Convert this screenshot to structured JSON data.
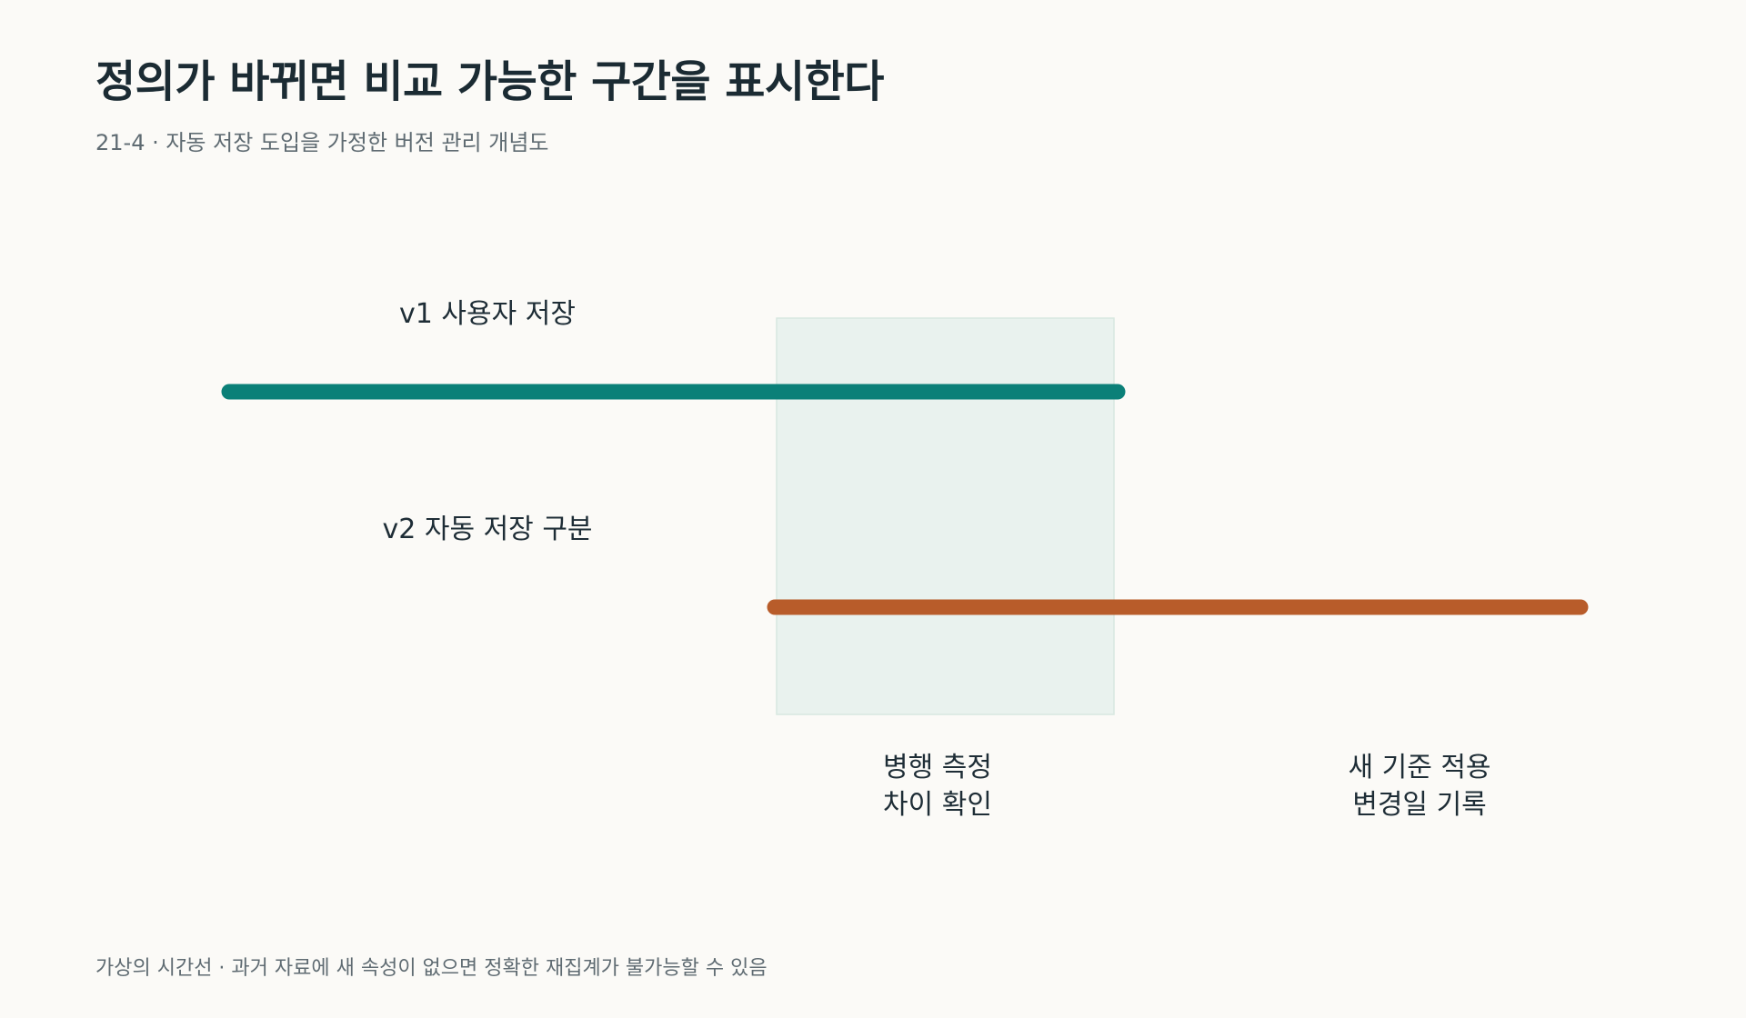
{
  "title": "정의가 바뀌면 비교 가능한 구간을 표시한다",
  "subtitle": "21-4 · 자동 저장 도입을 가정한 버전 관리 개념도",
  "tracks": [
    {
      "label": "v1 사용자 저장",
      "color": "#0b8078"
    },
    {
      "label": "v2 자동 저장 구분",
      "color": "#b85c2a"
    }
  ],
  "overlap_region": {
    "fill": "#e9f2ee",
    "stroke": "#d8e8e0"
  },
  "stages": {
    "overlap": {
      "lines": [
        "병행 측정",
        "차이 확인"
      ]
    },
    "adopt": {
      "lines": [
        "새 기준 적용",
        "변경일 기록"
      ]
    }
  },
  "footnote": "가상의 시간선 · 과거 자료에 새 속성이 없으면 정확한 재집계가 불가능할 수 있음"
}
